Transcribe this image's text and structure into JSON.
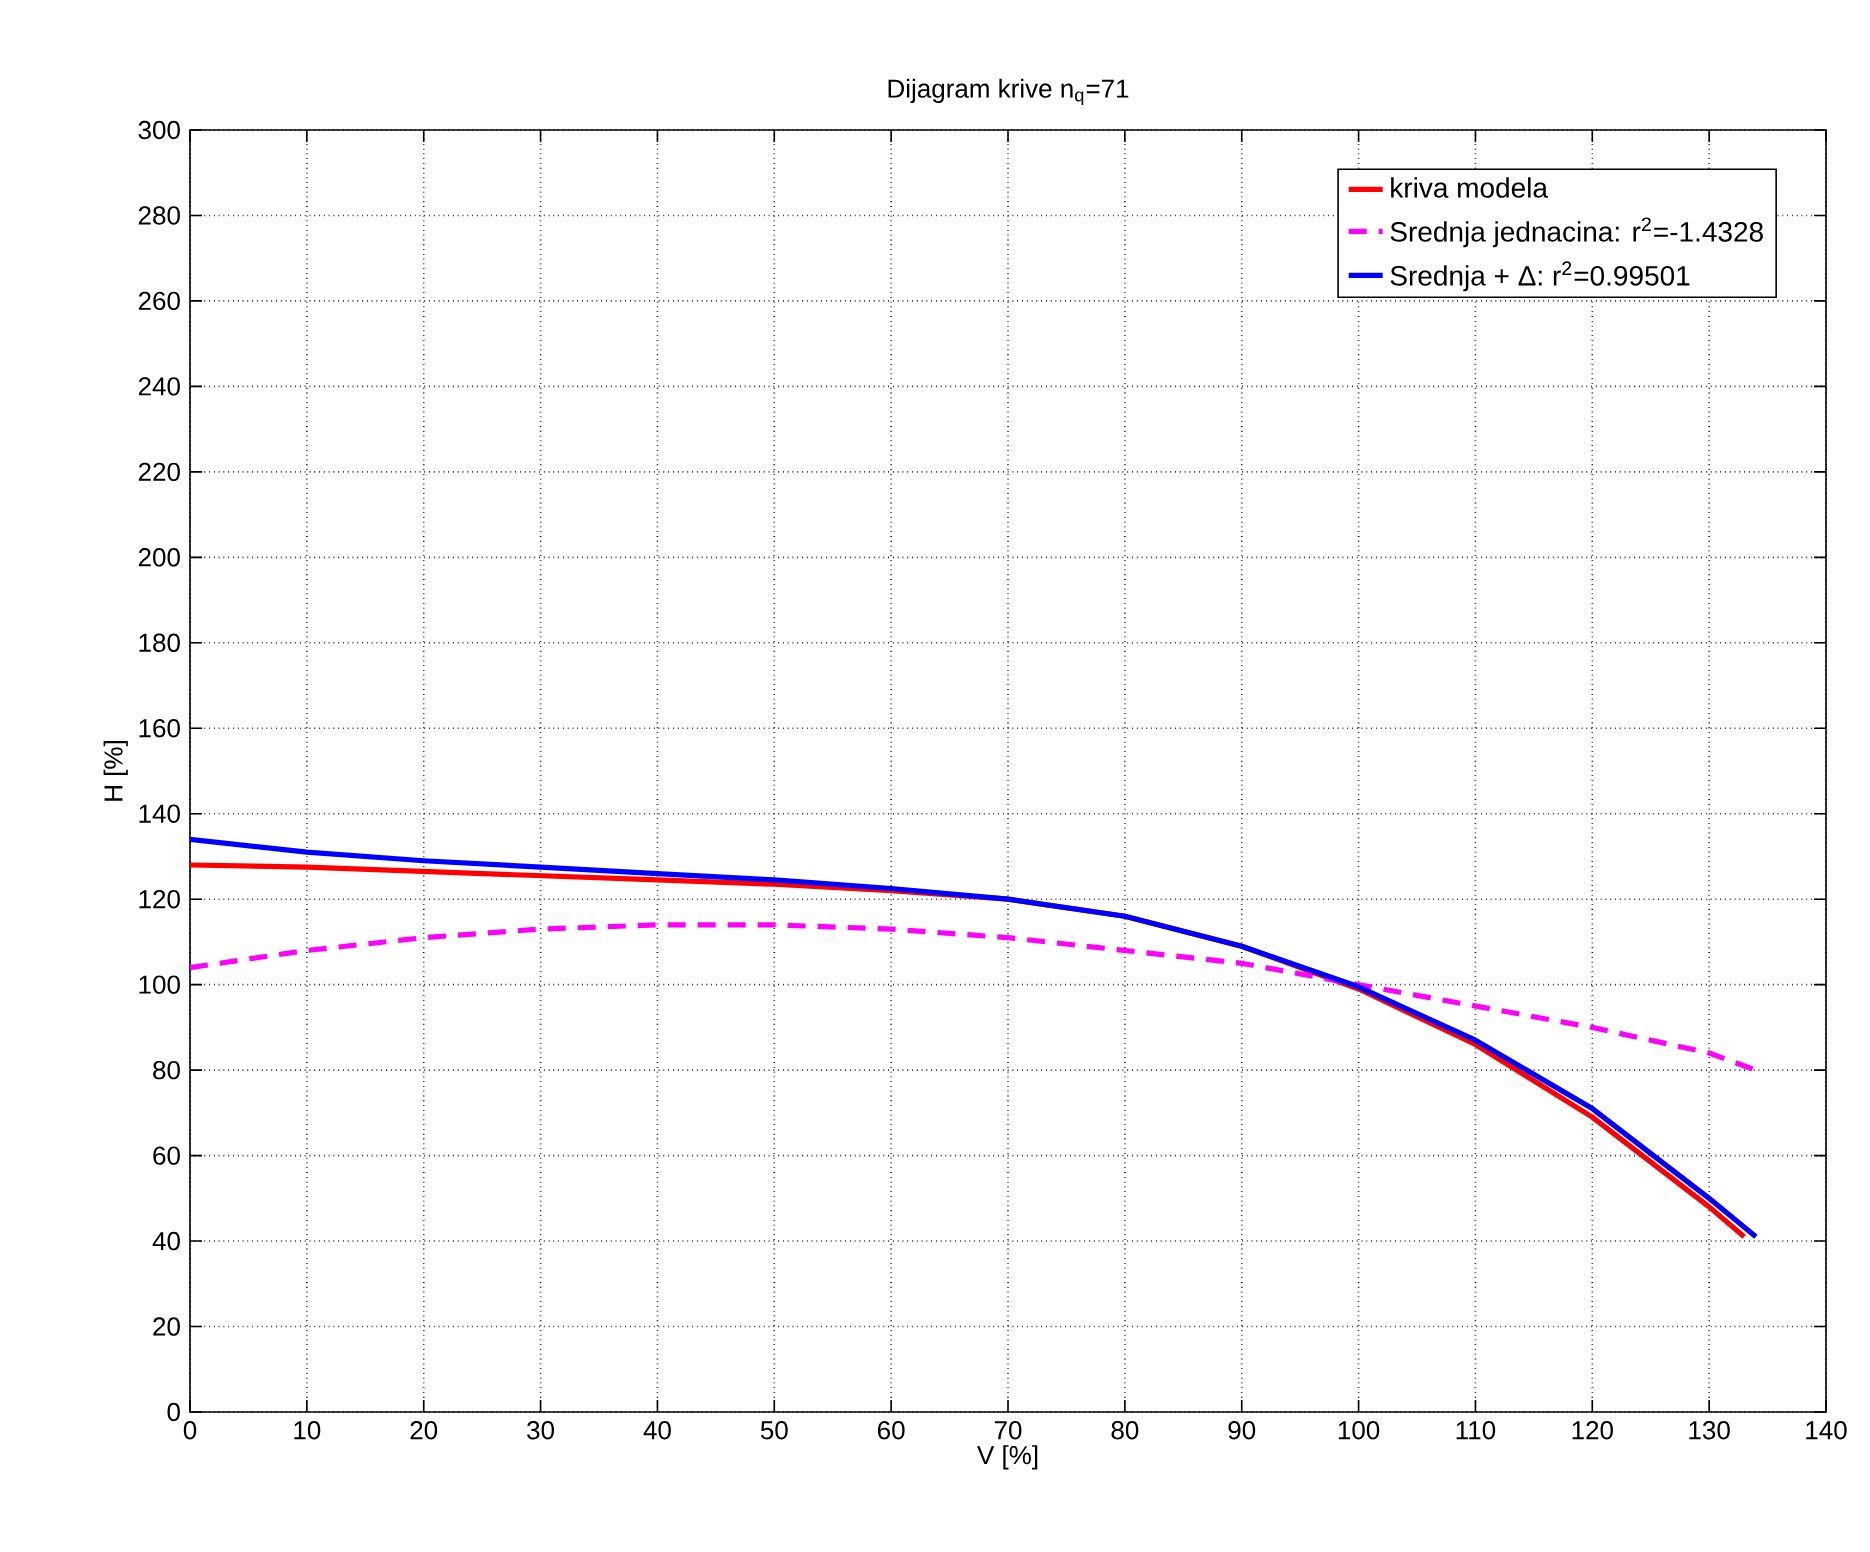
{
  "chart_data": {
    "type": "line",
    "title": "Dijagram krive n$_{q}$=71",
    "xlabel": "V [%]",
    "ylabel": "H [%]",
    "xlim": [
      0,
      140
    ],
    "ylim": [
      0,
      300
    ],
    "xticks": [
      0,
      10,
      20,
      30,
      40,
      50,
      60,
      70,
      80,
      90,
      100,
      110,
      120,
      130,
      140
    ],
    "yticks": [
      0,
      20,
      40,
      60,
      80,
      100,
      120,
      140,
      160,
      180,
      200,
      220,
      240,
      260,
      280,
      300
    ],
    "grid": true,
    "legend": "top right",
    "marker": "none",
    "series": [
      {
        "name": "kriva modela",
        "color": "#ff0000",
        "line_style": "solid",
        "x": [
          0,
          10,
          20,
          30,
          40,
          50,
          60,
          70,
          80,
          90,
          100,
          110,
          120,
          130,
          133
        ],
        "values": [
          128,
          127.5,
          126.5,
          125.5,
          124.5,
          123.5,
          122,
          120,
          116,
          109,
          99,
          86,
          69,
          48,
          41
        ]
      },
      {
        "name": "Srednja jednacina: r$^{2}$=-1.4328",
        "color": "#ff00ff",
        "line_style": "dashed",
        "x": [
          0,
          10,
          20,
          30,
          40,
          50,
          60,
          70,
          80,
          90,
          100,
          110,
          120,
          130,
          134
        ],
        "values": [
          104,
          108,
          111,
          113,
          114,
          114,
          113,
          111,
          108,
          105,
          100,
          95,
          90,
          84,
          80
        ]
      },
      {
        "name": "Srednja + Δ: r$^{2}$=0.99501",
        "color": "#0000ff",
        "line_style": "solid",
        "x": [
          0,
          10,
          20,
          30,
          40,
          50,
          60,
          70,
          80,
          90,
          100,
          110,
          120,
          130,
          134
        ],
        "values": [
          134,
          131,
          129,
          127.5,
          126,
          124.5,
          122.5,
          120,
          116,
          109,
          99.5,
          87,
          71,
          50,
          41
        ]
      }
    ]
  }
}
